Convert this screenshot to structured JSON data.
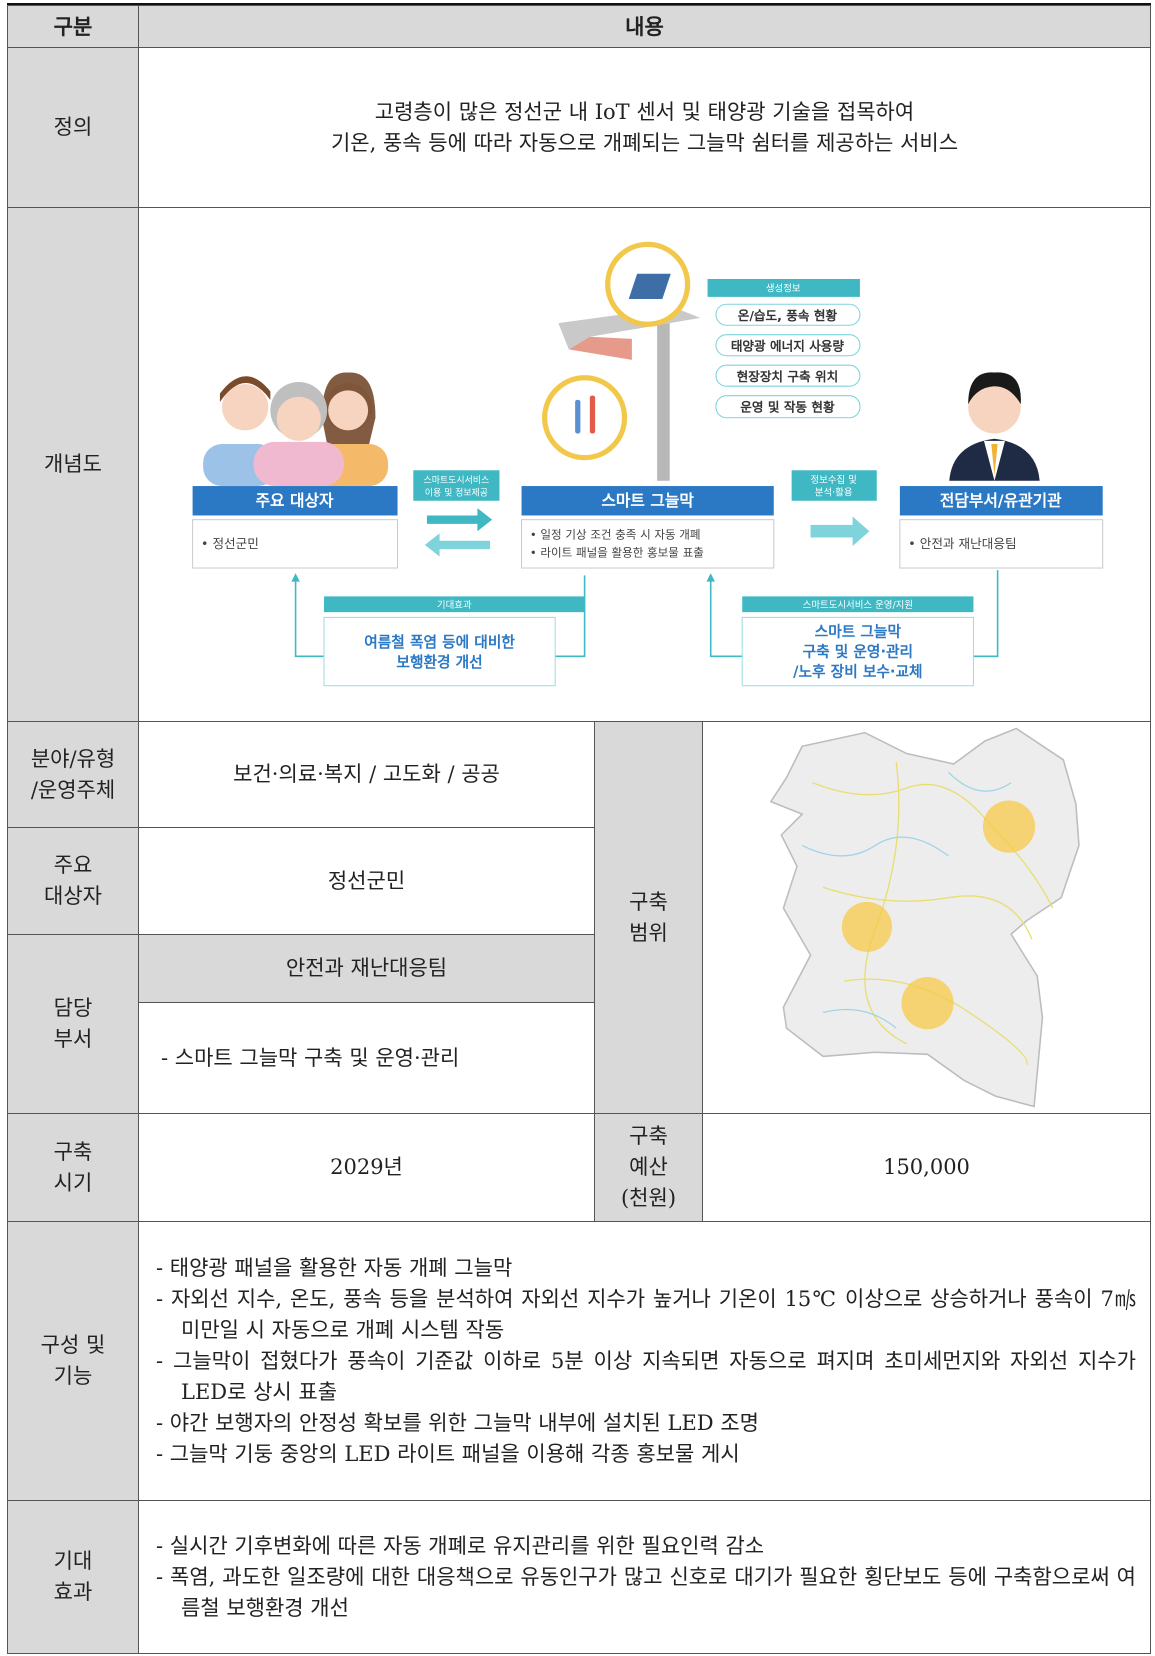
{
  "header": {
    "col1": "구분",
    "col2": "내용"
  },
  "definition": {
    "label": "정의",
    "lines": [
      "고령층이 많은 정선군 내 IoT 센서 및 태양광 기술을 접목하여",
      "기온, 풍속 등에 따라 자동으로 개폐되는 그늘막 쉼터를 제공하는 서비스"
    ]
  },
  "concept": {
    "label": "개념도",
    "diagram": {
      "target_title": "주요 대상자",
      "target_item": "• 정선군민",
      "service_use": [
        "스마트도시서비스",
        "이용 및 정보제공"
      ],
      "center_title": "스마트 그늘막",
      "center_items": [
        "• 일정 기상 조건 충족 시 자동 개폐",
        "• 라이트 패널을 활용한 홍보물 표출"
      ],
      "generated_title": "생성정보",
      "generated_items": [
        "온/습도, 풍속 현황",
        "태양광 에너지 사용량",
        "현장장치 구축 위치",
        "운영 및 작동 현황"
      ],
      "collect": [
        "정보수집 및",
        "분석·활용"
      ],
      "dept_title": "전담부서/유관기관",
      "dept_item": "• 안전과 재난대응팀",
      "effect_title": "기대효과",
      "effect_lines": [
        "여름철 폭염 등에 대비한",
        "보행환경 개선"
      ],
      "operate_title": "스마트도시서비스 운영/지원",
      "operate_lines": [
        "스마트 그늘막",
        "구축 및 운영·관리",
        "/노후 장비 보수·교체"
      ]
    }
  },
  "field": {
    "label_lines": [
      "분야/유형",
      "/운영주체"
    ],
    "value": "보건·의료·복지 / 고도화 / 공공"
  },
  "target": {
    "label_lines": [
      "주요",
      "대상자"
    ],
    "value": "정선군민"
  },
  "department": {
    "label_lines": [
      "담당",
      "부서"
    ],
    "name": "안전과 재난대응팀",
    "duty": "- 스마트 그늘막 구축 및 운영·관리"
  },
  "scope": {
    "label_lines": [
      "구축",
      "범위"
    ]
  },
  "period": {
    "label_lines": [
      "구축",
      "시기"
    ],
    "value": "2029년"
  },
  "budget": {
    "label_lines": [
      "구축",
      "예산",
      "(천원)"
    ],
    "value": "150,000"
  },
  "features": {
    "label_lines": [
      "구성 및",
      "기능"
    ],
    "items": [
      "- 태양광 패널을 활용한 자동 개폐 그늘막",
      "- 자외선 지수, 온도, 풍속 등을 분석하여 자외선 지수가 높거나 기온이 15℃ 이상으로 상승하거나 풍속이 7㎧ 미만일 시 자동으로 개폐 시스템 작동",
      "- 그늘막이 접혔다가 풍속이 기준값 이하로 5분 이상 지속되면 자동으로 펴지며 초미세먼지와 자외선 지수가 LED로 상시 표출",
      "- 야간 보행자의 안정성 확보를 위한 그늘막 내부에 설치된 LED 조명",
      "- 그늘막 기둥 중앙의 LED 라이트 패널을 이용해 각종 홍보물 게시"
    ]
  },
  "effects": {
    "label_lines": [
      "기대",
      "효과"
    ],
    "items": [
      "- 실시간 기후변화에 따른 자동 개폐로 유지관리를 위한 필요인력 감소",
      "- 폭염, 과도한 일조량에 대한 대응책으로 유동인구가 많고 신호로 대기가 필요한 횡단보도 등에 구축함으로써 여름철 보행환경 개선"
    ]
  }
}
